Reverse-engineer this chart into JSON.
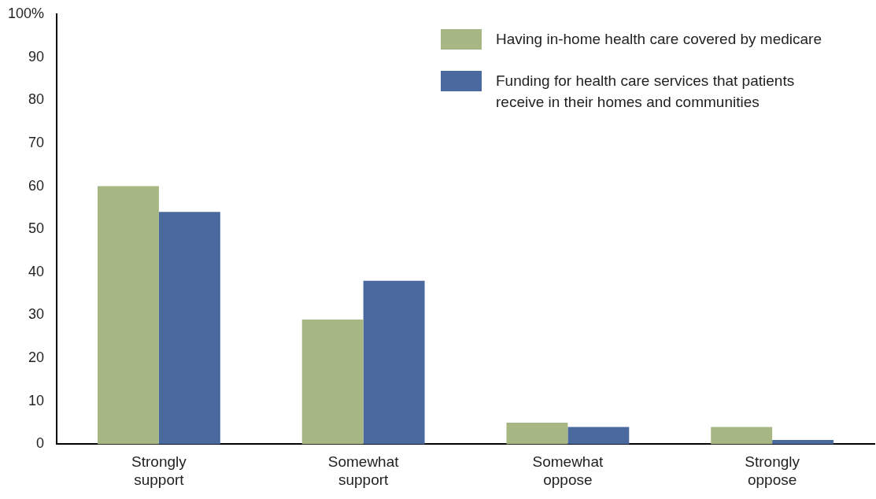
{
  "chart_data": {
    "type": "bar",
    "categories": [
      "Strongly support",
      "Somewhat support",
      "Somewhat oppose",
      "Strongly oppose"
    ],
    "series": [
      {
        "name": "Having in-home health care covered by medicare",
        "color": "#a6b784",
        "values": [
          60,
          29,
          5,
          4
        ]
      },
      {
        "name": "Funding for health care services that patients receive in their homes and communities",
        "color": "#4a699f",
        "values": [
          54,
          38,
          4,
          1
        ]
      }
    ],
    "ylim": [
      0,
      100
    ],
    "yticks": [
      0,
      10,
      20,
      30,
      40,
      50,
      60,
      70,
      80,
      90,
      {
        "value": 100,
        "label": "100%"
      }
    ],
    "grid": false,
    "legend": "top right"
  }
}
